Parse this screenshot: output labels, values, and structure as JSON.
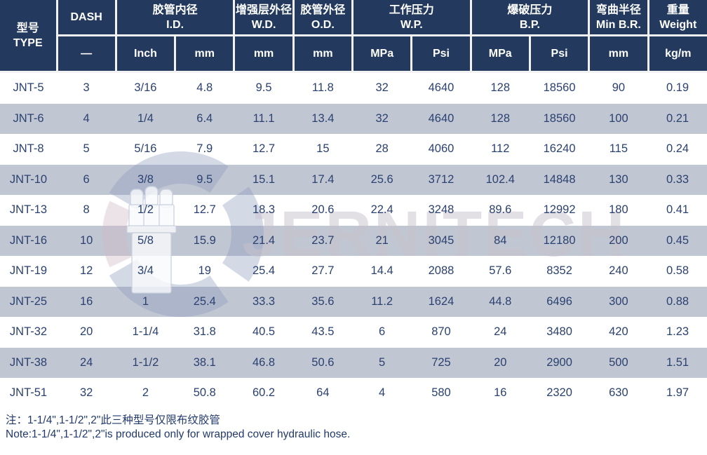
{
  "watermark": {
    "text": "JERNITECH",
    "logo": "swirl-hose-fitting-logo"
  },
  "table": {
    "header": {
      "groups": [
        {
          "line1": "型号",
          "line2": "TYPE"
        },
        {
          "line1": "DASH",
          "line2": ""
        },
        {
          "line1": "胶管内径",
          "line2": "I.D."
        },
        {
          "line1": "增强层外径",
          "line2": "W.D."
        },
        {
          "line1": "胶管外径",
          "line2": "O.D."
        },
        {
          "line1": "工作压力",
          "line2": "W.P."
        },
        {
          "line1": "爆破压力",
          "line2": "B.P."
        },
        {
          "line1": "弯曲半径",
          "line2": "Min B.R."
        },
        {
          "line1": "重量",
          "line2": "Weight"
        }
      ],
      "subs": [
        "—",
        "Inch",
        "mm",
        "mm",
        "mm",
        "MPa",
        "Psi",
        "MPa",
        "Psi",
        "mm",
        "kg/m"
      ]
    },
    "rows": [
      [
        "JNT-5",
        "3",
        "3/16",
        "4.8",
        "9.5",
        "11.8",
        "32",
        "4640",
        "128",
        "18560",
        "90",
        "0.19"
      ],
      [
        "JNT-6",
        "4",
        "1/4",
        "6.4",
        "11.1",
        "13.4",
        "32",
        "4640",
        "128",
        "18560",
        "100",
        "0.21"
      ],
      [
        "JNT-8",
        "5",
        "5/16",
        "7.9",
        "12.7",
        "15",
        "28",
        "4060",
        "112",
        "16240",
        "115",
        "0.24"
      ],
      [
        "JNT-10",
        "6",
        "3/8",
        "9.5",
        "15.1",
        "17.4",
        "25.6",
        "3712",
        "102.4",
        "14848",
        "130",
        "0.33"
      ],
      [
        "JNT-13",
        "8",
        "1/2",
        "12.7",
        "18.3",
        "20.6",
        "22.4",
        "3248",
        "89.6",
        "12992",
        "180",
        "0.41"
      ],
      [
        "JNT-16",
        "10",
        "5/8",
        "15.9",
        "21.4",
        "23.7",
        "21",
        "3045",
        "84",
        "12180",
        "200",
        "0.45"
      ],
      [
        "JNT-19",
        "12",
        "3/4",
        "19",
        "25.4",
        "27.7",
        "14.4",
        "2088",
        "57.6",
        "8352",
        "240",
        "0.58"
      ],
      [
        "JNT-25",
        "16",
        "1",
        "25.4",
        "33.3",
        "35.6",
        "11.2",
        "1624",
        "44.8",
        "6496",
        "300",
        "0.88"
      ],
      [
        "JNT-32",
        "20",
        "1-1/4",
        "31.8",
        "40.5",
        "43.5",
        "6",
        "870",
        "24",
        "3480",
        "420",
        "1.23"
      ],
      [
        "JNT-38",
        "24",
        "1-1/2",
        "38.1",
        "46.8",
        "50.6",
        "5",
        "725",
        "20",
        "2900",
        "500",
        "1.51"
      ],
      [
        "JNT-51",
        "32",
        "2",
        "50.8",
        "60.2",
        "64",
        "4",
        "580",
        "16",
        "2320",
        "630",
        "1.97"
      ]
    ]
  },
  "notes": {
    "zh": "注：1-1/4\",1-1/2\",2\"此三种型号仅限布纹胶管",
    "en": "Note:1-1/4\",1-1/2\",2\"is produced only for wrapped cover hydraulic hose."
  },
  "colors": {
    "header_bg": "#233a5e",
    "stripe": "#c1c6d3",
    "data_text": "#2b4170",
    "note_text": "#21396b"
  }
}
